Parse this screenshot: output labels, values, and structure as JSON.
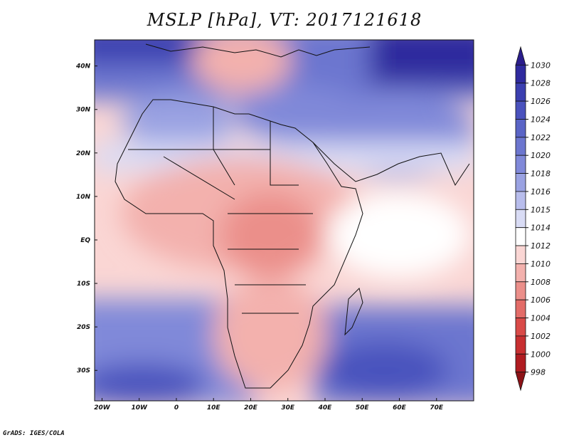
{
  "title": "MSLP [hPa], VT: 2017121618",
  "footer": "GrADS: IGES/COLA",
  "map": {
    "lat_labels": [
      "40N",
      "30N",
      "20N",
      "10N",
      "EQ",
      "10S",
      "20S",
      "30S"
    ],
    "lon_labels": [
      "20W",
      "10W",
      "0",
      "10E",
      "20E",
      "30E",
      "40E",
      "50E",
      "60E",
      "70E"
    ],
    "lon_range": [
      -22,
      80
    ],
    "lat_range": [
      -37,
      46
    ]
  },
  "colorbar": {
    "levels": [
      "1030",
      "1028",
      "1026",
      "1024",
      "1022",
      "1020",
      "1018",
      "1016",
      "1015",
      "1014",
      "1012",
      "1010",
      "1008",
      "1006",
      "1004",
      "1002",
      "1000",
      "998"
    ],
    "colors": [
      "#2b1d8c",
      "#2f2a9e",
      "#3b3fb0",
      "#4a52bd",
      "#5a64c6",
      "#6c76cf",
      "#8089d9",
      "#9aa2e2",
      "#b8bdec",
      "#d9dcf5",
      "#ffffff",
      "#fad6d4",
      "#f3b1ad",
      "#eb8f8a",
      "#e36c68",
      "#d94a48",
      "#c82f31",
      "#b01c21",
      "#8c1217"
    ]
  }
}
